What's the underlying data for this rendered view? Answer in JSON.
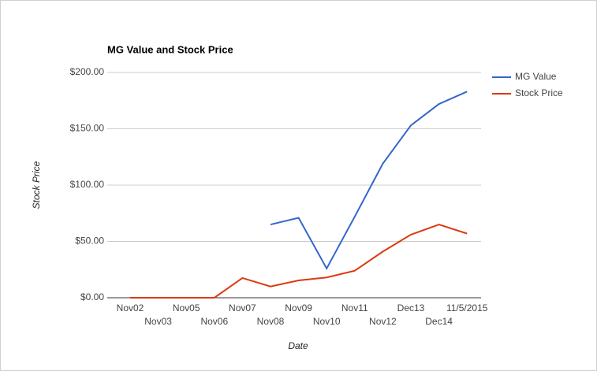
{
  "chart_data": {
    "type": "line",
    "title": "MG Value and Stock Price",
    "x_label": "Date",
    "y_label": "Stock Price",
    "categories": [
      "Nov02",
      "Nov03",
      "Nov05",
      "Nov06",
      "Nov07",
      "Nov08",
      "Nov09",
      "Nov10",
      "Nov11",
      "Nov12",
      "Dec13",
      "Dec14",
      "11/5/2015"
    ],
    "series": [
      {
        "name": "MG Value",
        "color": "#3366cc",
        "values": [
          null,
          null,
          null,
          null,
          null,
          65,
          71,
          26,
          72,
          119,
          153,
          172,
          183
        ]
      },
      {
        "name": "Stock Price",
        "color": "#dc3912",
        "values": [
          0,
          0,
          0,
          0,
          17.5,
          10,
          15.4,
          18,
          24,
          41,
          56,
          65,
          57
        ]
      }
    ],
    "ylim": [
      0,
      200
    ],
    "yticks": [
      {
        "value": 0,
        "label": "$0.00"
      },
      {
        "value": 50,
        "label": "$50.00"
      },
      {
        "value": 100,
        "label": "$100.00"
      },
      {
        "value": 150,
        "label": "$150.00"
      },
      {
        "value": 200,
        "label": "$200.00"
      }
    ],
    "grid": true,
    "legend": "right"
  }
}
